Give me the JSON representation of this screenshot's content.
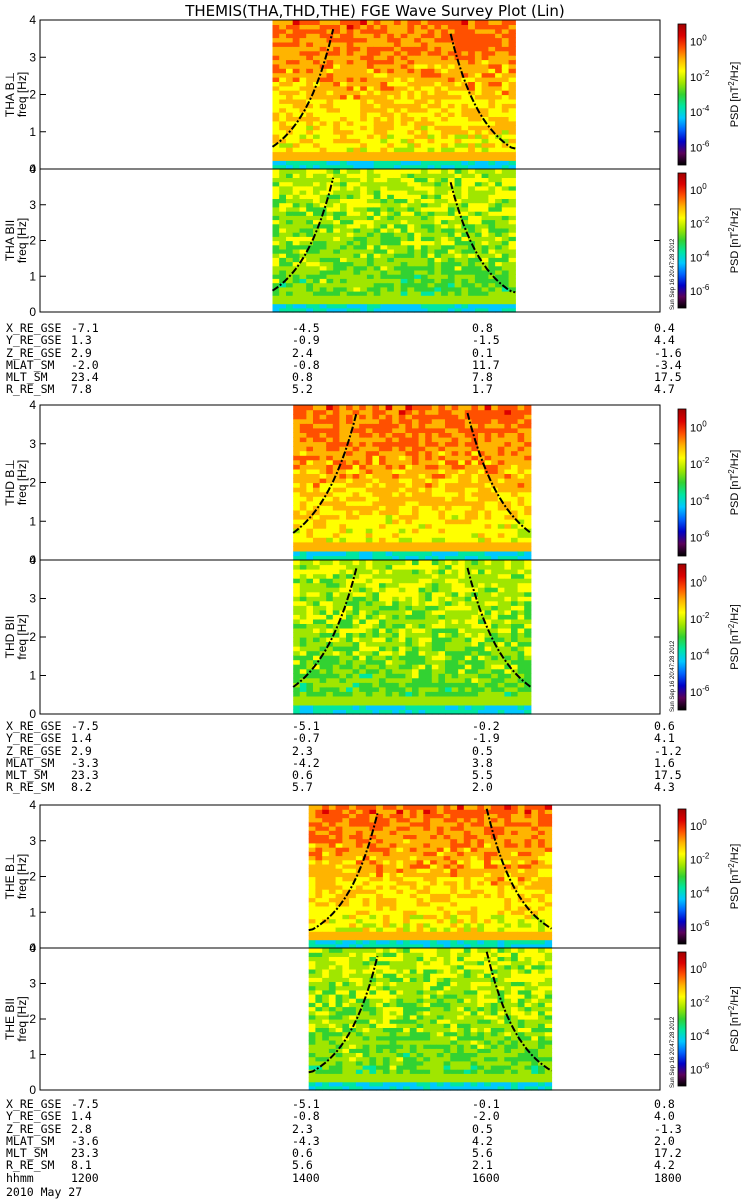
{
  "title": "THEMIS(THA,THD,THE) FGE Wave Survey Plot (Lin)",
  "timestamp_vertical": "Sun Sep 16 20:47:28 2012",
  "colorbar": {
    "label_prefix": "PSD [nT",
    "label_sup": "2",
    "label_suffix": "/Hz]",
    "ticks": [
      {
        "base": "10",
        "exp": "0"
      },
      {
        "base": "10",
        "exp": "-2"
      },
      {
        "base": "10",
        "exp": "-4"
      },
      {
        "base": "10",
        "exp": "-6"
      }
    ]
  },
  "chart_data": [
    {
      "type": "heatmap",
      "panel": "THA B⊥",
      "ylabel": "THA B⊥",
      "ylabel2": "freq [Hz]",
      "ylim": [
        0,
        4
      ],
      "yticks": [
        "0",
        "1",
        "2",
        "3",
        "4"
      ],
      "data_start": 1425,
      "data_end": 1660,
      "curve_center": 1540,
      "curve_low_ends": 0.55
    },
    {
      "type": "heatmap",
      "panel": "THA BII",
      "ylabel": "THA BII",
      "ylabel2": "freq [Hz]",
      "ylim": [
        0,
        4
      ],
      "yticks": [
        "0",
        "1",
        "2",
        "3",
        "4"
      ],
      "data_start": 1425,
      "data_end": 1660,
      "curve_center": 1540,
      "curve_low_ends": 0.55
    },
    {
      "type": "heatmap",
      "panel": "THD B⊥",
      "ylabel": "THD B⊥",
      "ylabel2": "freq [Hz]",
      "ylim": [
        0,
        4
      ],
      "yticks": [
        "0",
        "1",
        "2",
        "3",
        "4"
      ],
      "data_start": 1445,
      "data_end": 1675,
      "curve_center": 1560,
      "curve_low_ends": 0.7
    },
    {
      "type": "heatmap",
      "panel": "THD BII",
      "ylabel": "THD BII",
      "ylabel2": "freq [Hz]",
      "ylim": [
        0,
        4
      ],
      "yticks": [
        "0",
        "1",
        "2",
        "3",
        "4"
      ],
      "data_start": 1445,
      "data_end": 1675,
      "curve_center": 1560,
      "curve_low_ends": 0.7
    },
    {
      "type": "heatmap",
      "panel": "THE B⊥",
      "ylabel": "THE B⊥",
      "ylabel2": "freq [Hz]",
      "ylim": [
        0,
        4
      ],
      "yticks": [
        "0",
        "1",
        "2",
        "3",
        "4"
      ],
      "data_start": 1460,
      "data_end": 1695,
      "curve_center": 1580,
      "curve_low_ends": 0.5
    },
    {
      "type": "heatmap",
      "panel": "THE BII",
      "ylabel": "THE BII",
      "ylabel2": "freq [Hz]",
      "ylim": [
        0,
        4
      ],
      "yticks": [
        "0",
        "1",
        "2",
        "3",
        "4"
      ],
      "data_start": 1460,
      "data_end": 1695,
      "curve_center": 1580,
      "curve_low_ends": 0.5
    }
  ],
  "x_axis": {
    "xlim": [
      1200,
      1800
    ],
    "ticks": [
      1200,
      1400,
      1600,
      1800
    ]
  },
  "ephemeris": [
    {
      "rows": [
        {
          "label": "X_RE_GSE",
          "values": [
            "-7.1",
            "-4.5",
            "0.8",
            "0.4"
          ]
        },
        {
          "label": "Y_RE_GSE",
          "values": [
            "1.3",
            "-0.9",
            "-1.5",
            "4.4"
          ]
        },
        {
          "label": "Z_RE_GSE",
          "values": [
            "2.9",
            "2.4",
            "0.1",
            "-1.6"
          ]
        },
        {
          "label": "MLAT_SM",
          "values": [
            "-2.0",
            "-0.8",
            "11.7",
            "-3.4"
          ]
        },
        {
          "label": "MLT_SM",
          "values": [
            "23.4",
            "0.8",
            "7.8",
            "17.5"
          ]
        },
        {
          "label": "R_RE_SM",
          "values": [
            "7.8",
            "5.2",
            "1.7",
            "4.7"
          ]
        }
      ]
    },
    {
      "rows": [
        {
          "label": "X_RE_GSE",
          "values": [
            "-7.5",
            "-5.1",
            "-0.2",
            "0.6"
          ]
        },
        {
          "label": "Y_RE_GSE",
          "values": [
            "1.4",
            "-0.7",
            "-1.9",
            "4.1"
          ]
        },
        {
          "label": "Z_RE_GSE",
          "values": [
            "2.9",
            "2.3",
            "0.5",
            "-1.2"
          ]
        },
        {
          "label": "MLAT_SM",
          "values": [
            "-3.3",
            "-4.2",
            "3.8",
            "1.6"
          ]
        },
        {
          "label": "MLT_SM",
          "values": [
            "23.3",
            "0.6",
            "5.5",
            "17.5"
          ]
        },
        {
          "label": "R_RE_SM",
          "values": [
            "8.2",
            "5.7",
            "2.0",
            "4.3"
          ]
        }
      ]
    },
    {
      "rows": [
        {
          "label": "X_RE_GSE",
          "values": [
            "-7.5",
            "-5.1",
            "-0.1",
            "0.8"
          ]
        },
        {
          "label": "Y_RE_GSE",
          "values": [
            "1.4",
            "-0.8",
            "-2.0",
            "4.0"
          ]
        },
        {
          "label": "Z_RE_GSE",
          "values": [
            "2.8",
            "2.3",
            "0.5",
            "-1.3"
          ]
        },
        {
          "label": "MLAT_SM",
          "values": [
            "-3.6",
            "-4.3",
            "4.2",
            "2.0"
          ]
        },
        {
          "label": "MLT_SM",
          "values": [
            "23.3",
            "0.6",
            "5.6",
            "17.2"
          ]
        },
        {
          "label": "R_RE_SM",
          "values": [
            "8.1",
            "5.6",
            "2.1",
            "4.2"
          ]
        },
        {
          "label": "hhmm",
          "values": [
            "1200",
            "1400",
            "1600",
            "1800"
          ]
        }
      ]
    }
  ],
  "date": "2010 May 27",
  "colors": {
    "cmap": [
      "#000000",
      "#5a005a",
      "#0000c8",
      "#0064ff",
      "#00c8ff",
      "#00e6a0",
      "#32d232",
      "#a0e600",
      "#ffff00",
      "#ffb400",
      "#ff5000",
      "#dc0000",
      "#a00000"
    ]
  }
}
